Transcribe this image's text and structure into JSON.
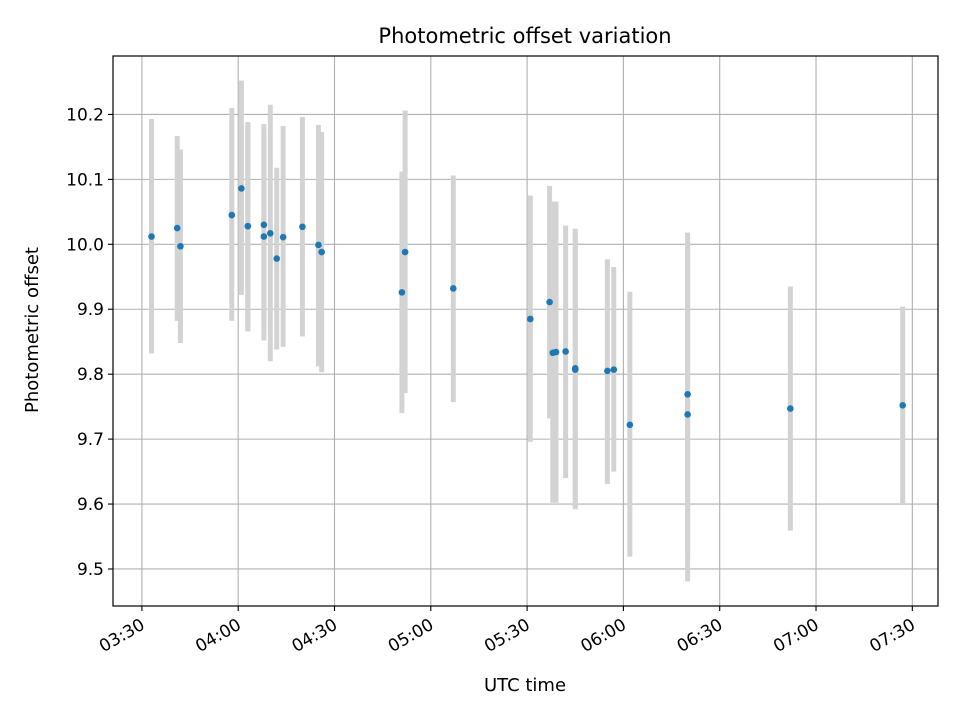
{
  "chart_data": {
    "type": "scatter",
    "title": "Photometric offset variation",
    "xlabel": "UTC time",
    "ylabel": "Photometric offset",
    "grid": true,
    "xlim": [
      "03:21",
      "07:38"
    ],
    "ylim": [
      9.443,
      10.29
    ],
    "x_ticks": [
      "03:30",
      "04:00",
      "04:30",
      "05:00",
      "05:30",
      "06:00",
      "06:30",
      "07:00",
      "07:30"
    ],
    "y_ticks": [
      "9.5",
      "9.6",
      "9.7",
      "9.8",
      "9.9",
      "10.0",
      "10.1",
      "10.2"
    ],
    "colors": {
      "marker": "#1f77b4",
      "errorbar": "#d3d3d3",
      "grid": "#b0b0b0"
    },
    "points": [
      {
        "x": "03:33",
        "y": 10.012,
        "ylo": 9.832,
        "yhi": 10.193
      },
      {
        "x": "03:41",
        "y": 10.025,
        "ylo": 9.882,
        "yhi": 10.167
      },
      {
        "x": "03:42",
        "y": 9.997,
        "ylo": 9.848,
        "yhi": 10.146
      },
      {
        "x": "03:58",
        "y": 10.045,
        "ylo": 9.882,
        "yhi": 10.21
      },
      {
        "x": "04:01",
        "y": 10.086,
        "ylo": 9.922,
        "yhi": 10.252
      },
      {
        "x": "04:03",
        "y": 10.028,
        "ylo": 9.866,
        "yhi": 10.188
      },
      {
        "x": "04:03",
        "y": 10.028,
        "ylo": 9.866,
        "yhi": 10.188
      },
      {
        "x": "04:08",
        "y": 10.03,
        "ylo": 9.875,
        "yhi": 10.185
      },
      {
        "x": "04:08",
        "y": 10.012,
        "ylo": 9.852,
        "yhi": 10.172
      },
      {
        "x": "04:10",
        "y": 10.017,
        "ylo": 9.82,
        "yhi": 10.215
      },
      {
        "x": "04:12",
        "y": 9.978,
        "ylo": 9.838,
        "yhi": 10.118
      },
      {
        "x": "04:14",
        "y": 10.011,
        "ylo": 9.842,
        "yhi": 10.182
      },
      {
        "x": "04:20",
        "y": 10.027,
        "ylo": 9.858,
        "yhi": 10.196
      },
      {
        "x": "04:25",
        "y": 9.999,
        "ylo": 9.812,
        "yhi": 10.184
      },
      {
        "x": "04:26",
        "y": 9.988,
        "ylo": 9.803,
        "yhi": 10.173
      },
      {
        "x": "04:51",
        "y": 9.926,
        "ylo": 9.74,
        "yhi": 10.112
      },
      {
        "x": "04:52",
        "y": 9.988,
        "ylo": 9.771,
        "yhi": 10.206
      },
      {
        "x": "05:07",
        "y": 9.932,
        "ylo": 9.757,
        "yhi": 10.106
      },
      {
        "x": "05:31",
        "y": 9.885,
        "ylo": 9.696,
        "yhi": 10.075
      },
      {
        "x": "05:37",
        "y": 9.911,
        "ylo": 9.732,
        "yhi": 10.09
      },
      {
        "x": "05:38",
        "y": 9.833,
        "ylo": 9.602,
        "yhi": 10.066
      },
      {
        "x": "05:39",
        "y": 9.834,
        "ylo": 9.602,
        "yhi": 10.066
      },
      {
        "x": "05:42",
        "y": 9.835,
        "ylo": 9.64,
        "yhi": 10.029
      },
      {
        "x": "05:45",
        "y": 9.809,
        "ylo": 9.592,
        "yhi": 10.024
      },
      {
        "x": "05:45",
        "y": 9.807,
        "ylo": 9.596,
        "yhi": 10.019
      },
      {
        "x": "05:55",
        "y": 9.805,
        "ylo": 9.631,
        "yhi": 9.977
      },
      {
        "x": "05:57",
        "y": 9.807,
        "ylo": 9.65,
        "yhi": 9.965
      },
      {
        "x": "06:02",
        "y": 9.722,
        "ylo": 9.519,
        "yhi": 9.927
      },
      {
        "x": "06:20",
        "y": 9.769,
        "ylo": 9.521,
        "yhi": 10.018
      },
      {
        "x": "06:20",
        "y": 9.738,
        "ylo": 9.481,
        "yhi": 9.995
      },
      {
        "x": "06:52",
        "y": 9.747,
        "ylo": 9.559,
        "yhi": 9.935
      },
      {
        "x": "07:27",
        "y": 9.752,
        "ylo": 9.6,
        "yhi": 9.904
      }
    ]
  }
}
